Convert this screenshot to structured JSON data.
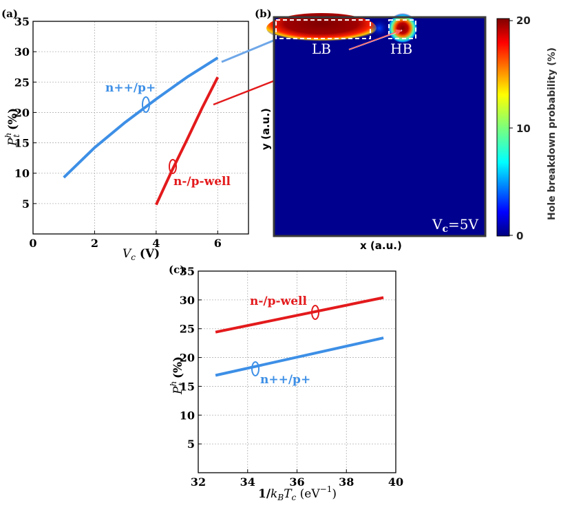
{
  "chart_data": [
    {
      "panel": "(a)",
      "type": "line",
      "xlabel": "V_c (V)",
      "ylabel": "P_t^h (%)",
      "xlim": [
        0,
        7
      ],
      "ylim": [
        0,
        35
      ],
      "xticks": [
        0,
        2,
        4,
        6
      ],
      "yticks": [
        5,
        10,
        15,
        20,
        25,
        30,
        35
      ],
      "grid": true,
      "series": [
        {
          "name": "n++/p+",
          "color": "#3d8fe6",
          "x": [
            1,
            2,
            3,
            4,
            5,
            6
          ],
          "y": [
            9.3,
            14.2,
            18.4,
            22.2,
            25.8,
            29.0
          ]
        },
        {
          "name": "n-/p-well",
          "color": "#e31a1c",
          "x": [
            4,
            4.5,
            5,
            5.5,
            6
          ],
          "y": [
            4.8,
            10.3,
            15.5,
            20.8,
            25.8
          ]
        }
      ]
    },
    {
      "panel": "(b)",
      "type": "heatmap",
      "xlabel": "x (a.u.)",
      "ylabel": "y (a.u.)",
      "colorbar_label": "Hole breakdown probability (%)",
      "colorbar_range": [
        0,
        20
      ],
      "colorbar_ticks": [
        0,
        10,
        20
      ],
      "regions": [
        "LB",
        "HB"
      ],
      "condition": "V_c=5V"
    },
    {
      "panel": "(c)",
      "type": "line",
      "xlabel": "1/k_B T_c (eV^-1)",
      "ylabel": "P_t^h (%)",
      "xlim": [
        32,
        40
      ],
      "ylim": [
        0,
        35
      ],
      "xticks": [
        32,
        34,
        36,
        38,
        40
      ],
      "yticks": [
        5,
        10,
        15,
        20,
        25,
        30,
        35
      ],
      "grid": true,
      "series": [
        {
          "name": "n-/p-well",
          "color": "#e31a1c",
          "x": [
            32.7,
            39.5
          ],
          "y": [
            24.4,
            30.4
          ]
        },
        {
          "name": "n++/p+",
          "color": "#3d8fe6",
          "x": [
            32.7,
            39.5
          ],
          "y": [
            16.9,
            23.4
          ]
        }
      ]
    }
  ],
  "labels": {
    "a_panel": "(a)",
    "b_panel": "(b)",
    "c_panel": "(c)",
    "a_series_blue": "n++/p+",
    "a_series_red": "n-/p-well",
    "c_series_red": "n-/p-well",
    "c_series_blue": "n++/p+",
    "lb": "LB",
    "hb": "HB",
    "vc_text": "V",
    "vc_sub": "c",
    "vc_val": "=5V",
    "b_xlabel": "x (a.u.)",
    "b_ylabel": "y (a.u.)",
    "cb_title": "Hole breakdown probability (%)",
    "cb_ticks": [
      "20",
      "10",
      "0"
    ],
    "a_xlabel_v": "V",
    "a_xlabel_sub": "c",
    "a_xlabel_unit": " (V)",
    "ylabel_p": "P",
    "ylabel_sup": "h",
    "ylabel_sub": "t",
    "ylabel_unit": " (%)",
    "c_xlabel_pre": "1/",
    "c_xlabel_k": "k",
    "c_xlabel_ksub": "B",
    "c_xlabel_t": "T",
    "c_xlabel_tsub": "c",
    "c_xlabel_unit": " (eV",
    "c_xlabel_exp": "−1",
    "c_xlabel_close": ")"
  },
  "colors": {
    "blue": "#3d8fe6",
    "red": "#e31a1c",
    "map_background": "#00008f",
    "grid": "#b0b0b0"
  }
}
